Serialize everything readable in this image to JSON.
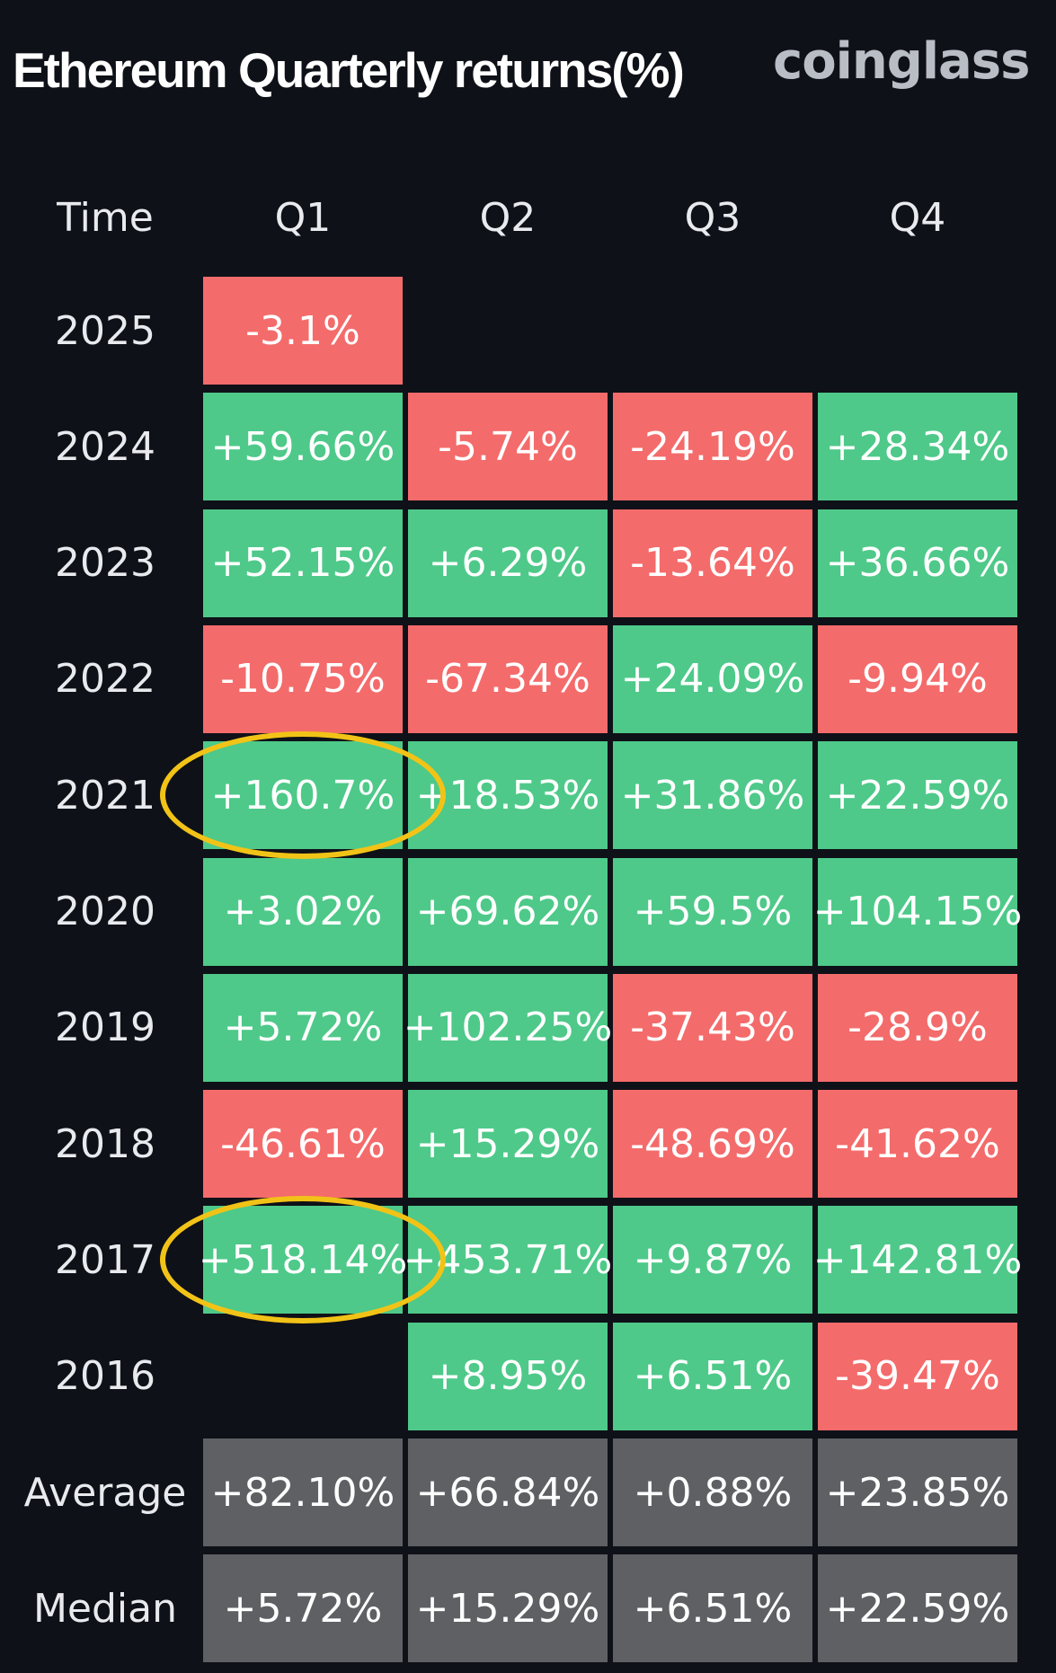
{
  "header": {
    "title": "Ethereum Quarterly returns(%)",
    "brand": "coinglass"
  },
  "chart_data": {
    "type": "table",
    "title": "Ethereum Quarterly returns(%)",
    "columns": [
      "Time",
      "Q1",
      "Q2",
      "Q3",
      "Q4"
    ],
    "rows": [
      {
        "label": "2025",
        "values": [
          "-3.1%",
          "",
          "",
          ""
        ],
        "numeric": [
          -3.1,
          null,
          null,
          null
        ]
      },
      {
        "label": "2024",
        "values": [
          "+59.66%",
          "-5.74%",
          "-24.19%",
          "+28.34%"
        ],
        "numeric": [
          59.66,
          -5.74,
          -24.19,
          28.34
        ]
      },
      {
        "label": "2023",
        "values": [
          "+52.15%",
          "+6.29%",
          "-13.64%",
          "+36.66%"
        ],
        "numeric": [
          52.15,
          6.29,
          -13.64,
          36.66
        ]
      },
      {
        "label": "2022",
        "values": [
          "-10.75%",
          "-67.34%",
          "+24.09%",
          "-9.94%"
        ],
        "numeric": [
          -10.75,
          -67.34,
          24.09,
          -9.94
        ]
      },
      {
        "label": "2021",
        "values": [
          "+160.7%",
          "+18.53%",
          "+31.86%",
          "+22.59%"
        ],
        "numeric": [
          160.7,
          18.53,
          31.86,
          22.59
        ]
      },
      {
        "label": "2020",
        "values": [
          "+3.02%",
          "+69.62%",
          "+59.5%",
          "+104.15%"
        ],
        "numeric": [
          3.02,
          69.62,
          59.5,
          104.15
        ]
      },
      {
        "label": "2019",
        "values": [
          "+5.72%",
          "+102.25%",
          "-37.43%",
          "-28.9%"
        ],
        "numeric": [
          5.72,
          102.25,
          -37.43,
          -28.9
        ]
      },
      {
        "label": "2018",
        "values": [
          "-46.61%",
          "+15.29%",
          "-48.69%",
          "-41.62%"
        ],
        "numeric": [
          -46.61,
          15.29,
          -48.69,
          -41.62
        ]
      },
      {
        "label": "2017",
        "values": [
          "+518.14%",
          "+453.71%",
          "+9.87%",
          "+142.81%"
        ],
        "numeric": [
          518.14,
          453.71,
          9.87,
          142.81
        ]
      },
      {
        "label": "2016",
        "values": [
          "",
          "+8.95%",
          "+6.51%",
          "-39.47%"
        ],
        "numeric": [
          null,
          8.95,
          6.51,
          -39.47
        ]
      }
    ],
    "summary": [
      {
        "label": "Average",
        "values": [
          "+82.10%",
          "+66.84%",
          "+0.88%",
          "+23.85%"
        ]
      },
      {
        "label": "Median",
        "values": [
          "+5.72%",
          "+15.29%",
          "+6.51%",
          "+22.59%"
        ]
      }
    ],
    "colors": {
      "positive": "#4ec989",
      "negative": "#f46b6b",
      "summary": "#5e6064",
      "highlight": "#f2c317",
      "background": "#0f1118"
    },
    "highlights": [
      {
        "row": "2021",
        "column": "Q1"
      },
      {
        "row": "2017",
        "column": "Q1"
      }
    ]
  }
}
